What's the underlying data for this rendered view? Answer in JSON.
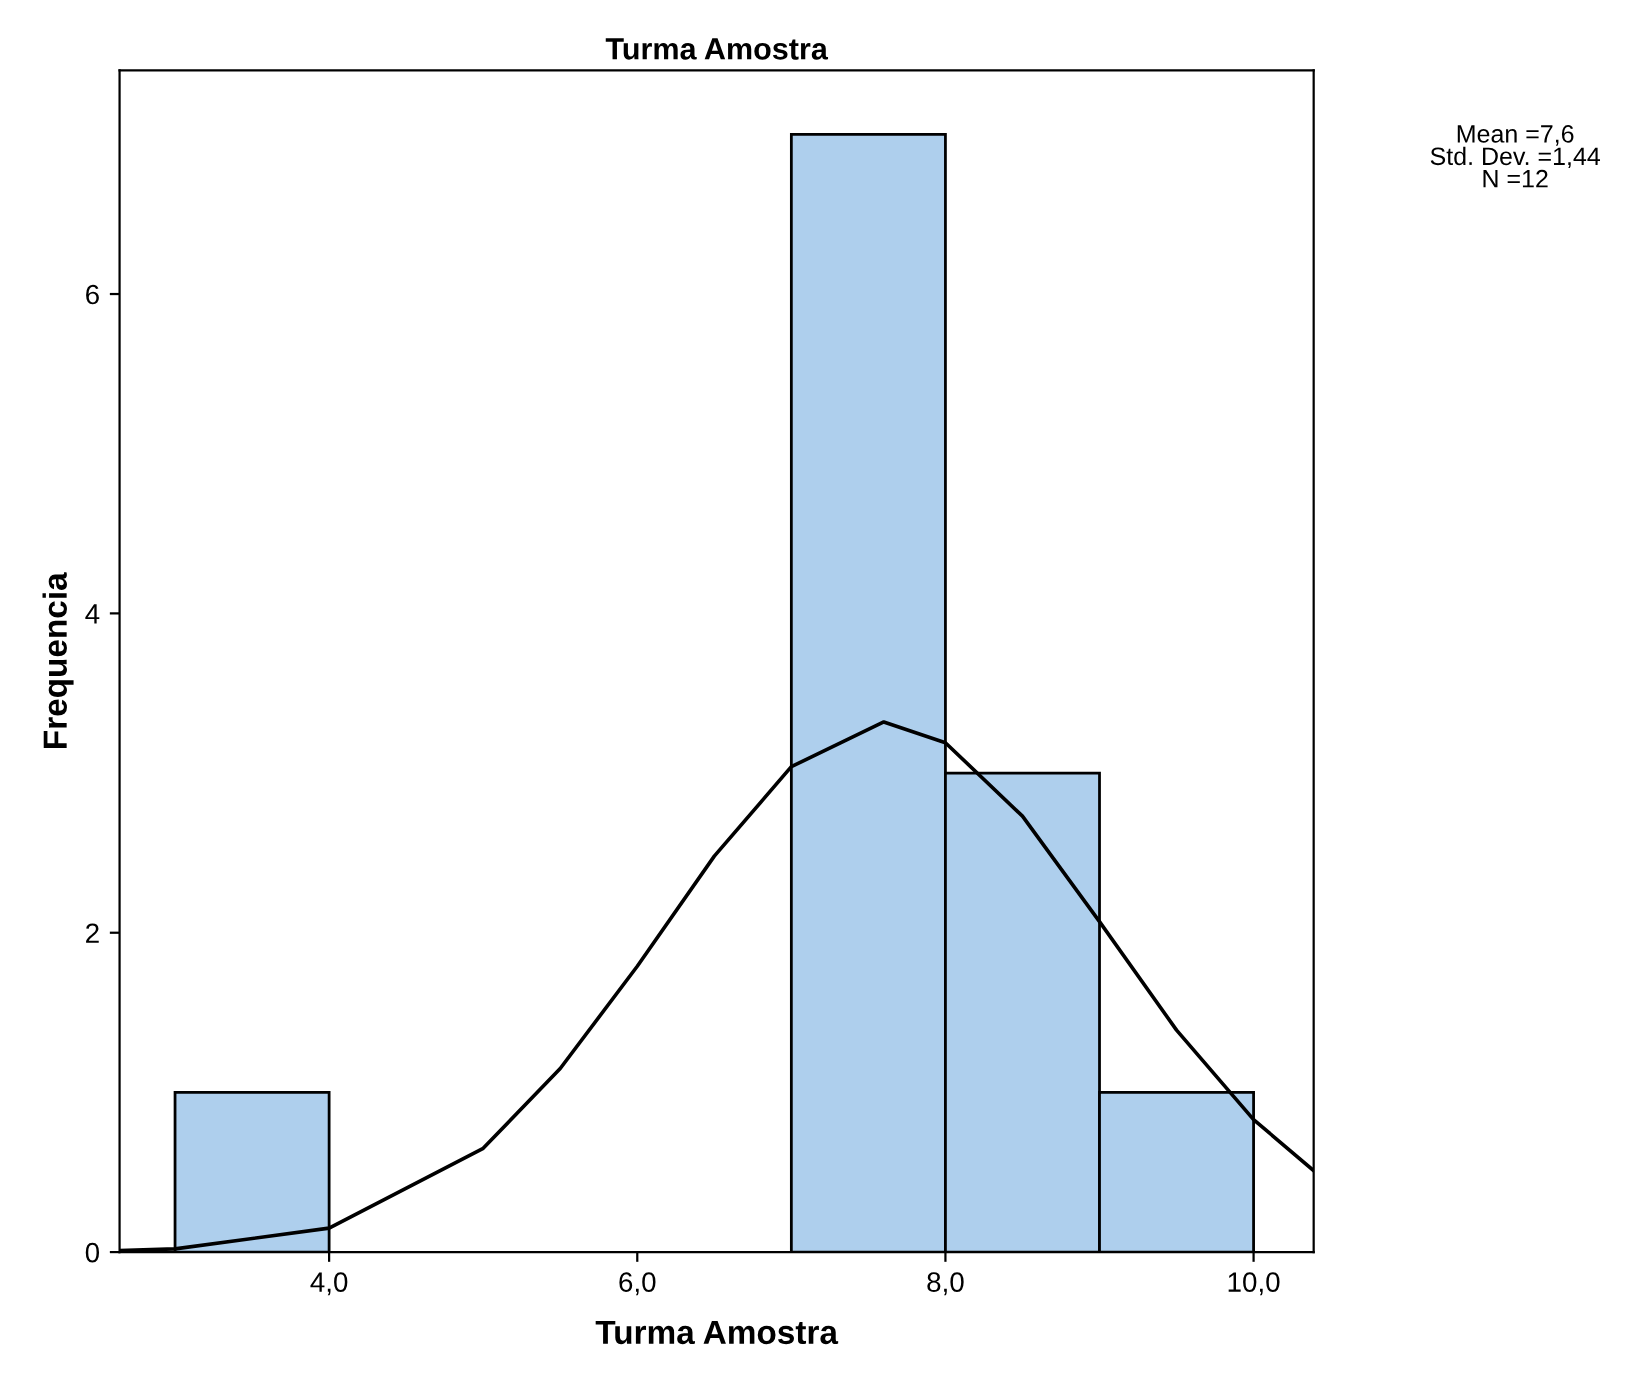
{
  "chart_data": {
    "type": "histogram",
    "title": "Turma Amostra",
    "xlabel": "Turma Amostra",
    "ylabel": "Frequencia",
    "bins": [
      3,
      4,
      5,
      6,
      7,
      8,
      9,
      10
    ],
    "series": [
      {
        "type": "histogram",
        "color": "#aecfed",
        "values": [
          1,
          0,
          0,
          0,
          7,
          3,
          1
        ]
      },
      {
        "type": "line",
        "color": "#000000",
        "x": [
          2.64,
          3,
          4,
          5,
          5.5,
          6,
          6.5,
          7,
          7.6,
          8,
          8.5,
          9,
          9.5,
          10,
          10.39
        ],
        "values": [
          0.01,
          0.02,
          0.15,
          0.65,
          1.15,
          1.79,
          2.48,
          3.04,
          3.32,
          3.19,
          2.73,
          2.07,
          1.39,
          0.83,
          0.51
        ]
      }
    ],
    "xlim": [
      2.64,
      10.39
    ],
    "ylim": [
      0,
      7.4
    ],
    "xticks": [
      {
        "value": 4,
        "label": "4,0"
      },
      {
        "value": 6,
        "label": "6,0"
      },
      {
        "value": 8,
        "label": "8,0"
      },
      {
        "value": 10,
        "label": "10,0"
      }
    ],
    "yticks": [
      0,
      2,
      4,
      6
    ],
    "grid": false,
    "legend": false,
    "annotations": [
      "Mean =7,6\nStd. Dev. =1,44\nN =12"
    ]
  }
}
